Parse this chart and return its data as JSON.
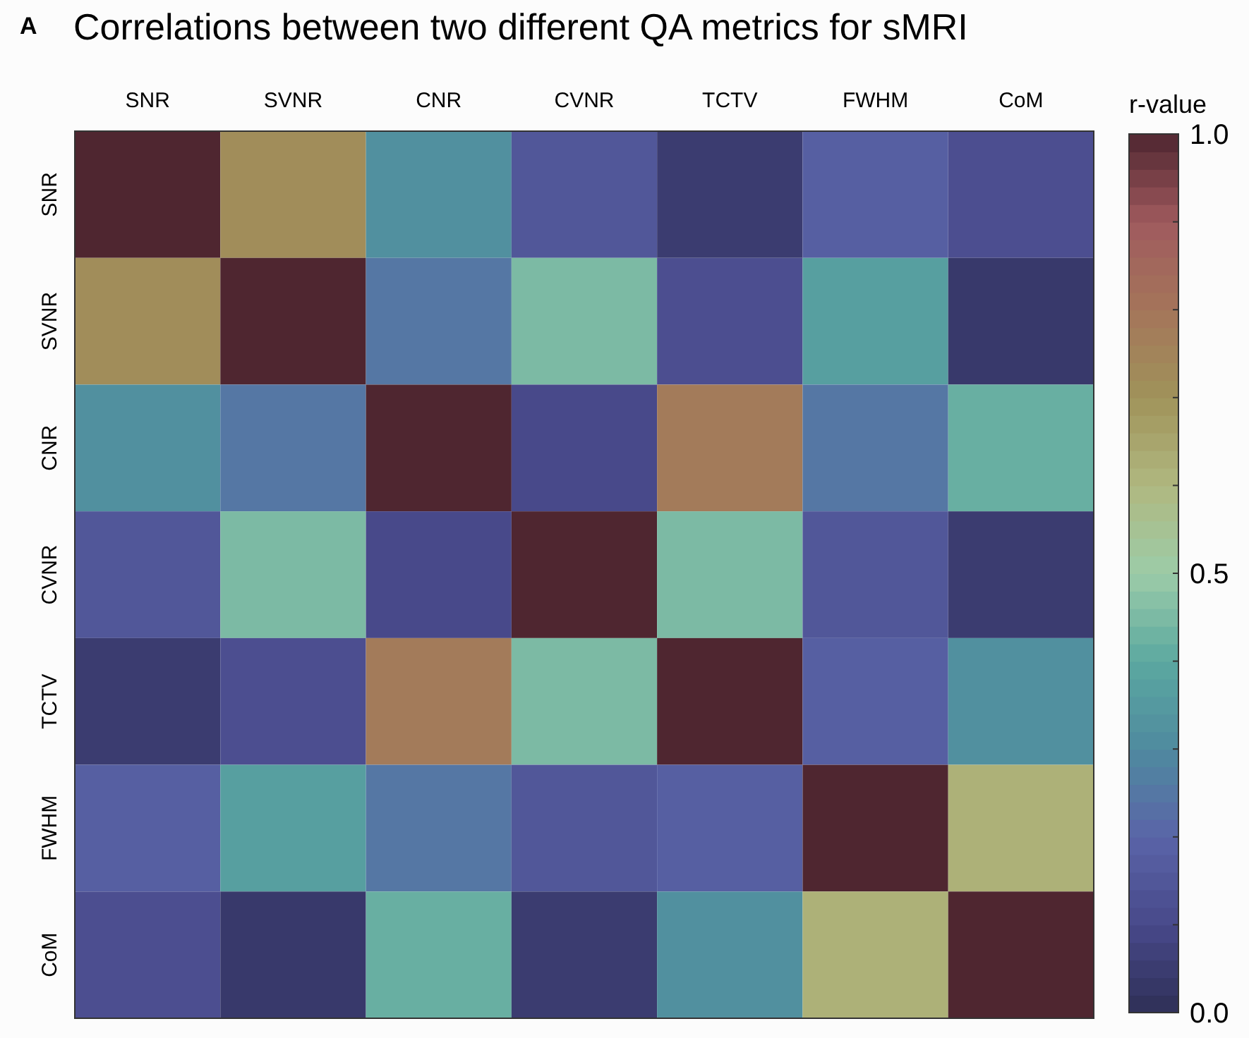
{
  "chart_data": {
    "type": "heatmap",
    "title": "Correlations between two different QA metrics for sMRI",
    "annotations": [
      "A"
    ],
    "categories": [
      "SNR",
      "SVNR",
      "CNR",
      "CVNR",
      "TCTV",
      "FWHM",
      "CoM"
    ],
    "y_categories": [
      "SNR",
      "SVNR",
      "CNR",
      "CVNR",
      "TCTV",
      "FWHM",
      "CoM"
    ],
    "cells": [
      [
        1,
        0.72,
        0.32,
        0.15,
        0.05,
        0.18,
        0.12
      ],
      [
        0.72,
        1,
        0.25,
        0.45,
        0.12,
        0.37,
        0.04
      ],
      [
        0.32,
        0.25,
        1,
        0.1,
        0.78,
        0.25,
        0.42
      ],
      [
        0.15,
        0.45,
        0.1,
        1,
        0.45,
        0.15,
        0.05
      ],
      [
        0.05,
        0.12,
        0.78,
        0.45,
        1,
        0.18,
        0.32
      ],
      [
        0.18,
        0.37,
        0.25,
        0.15,
        0.18,
        1,
        0.62
      ],
      [
        0.12,
        0.04,
        0.42,
        0.05,
        0.32,
        0.62,
        1
      ]
    ],
    "clabel": "r-value",
    "clim": [
      0,
      1
    ],
    "cticks": [
      {
        "value": 0,
        "label": "0.0"
      },
      {
        "value": 0.1,
        "label": null
      },
      {
        "value": 0.2,
        "label": null
      },
      {
        "value": 0.3,
        "label": null
      },
      {
        "value": 0.4,
        "label": null
      },
      {
        "value": 0.5,
        "label": "0.5"
      },
      {
        "value": 0.6,
        "label": null
      },
      {
        "value": 0.7,
        "label": null
      },
      {
        "value": 0.8,
        "label": null
      },
      {
        "value": 0.9,
        "label": null
      },
      {
        "value": 1,
        "label": "1.0"
      }
    ],
    "colors": [
      "#2e2f56",
      "#48498a",
      "#5a64a8",
      "#4f8a9f",
      "#5ba8a0",
      "#9ccca8",
      "#b0b880",
      "#a0935a",
      "#a4755a",
      "#a05a5e",
      "#4f2630"
    ]
  }
}
